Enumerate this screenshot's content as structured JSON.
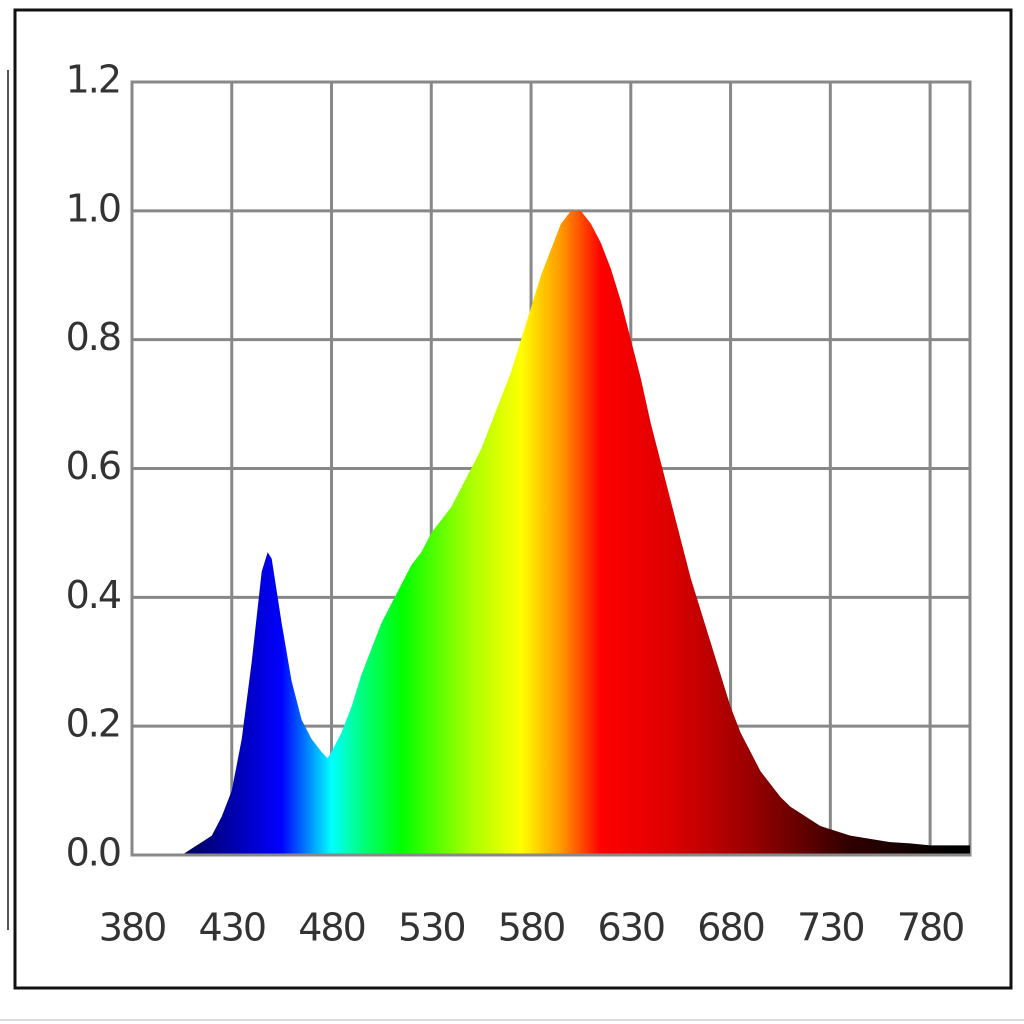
{
  "chart_data": {
    "type": "area",
    "x": [
      380,
      385,
      390,
      395,
      400,
      405,
      410,
      415,
      420,
      425,
      430,
      435,
      440,
      445,
      448,
      450,
      455,
      460,
      465,
      470,
      475,
      478,
      480,
      485,
      490,
      495,
      500,
      505,
      510,
      515,
      520,
      525,
      530,
      535,
      540,
      545,
      550,
      555,
      560,
      565,
      570,
      575,
      580,
      585,
      590,
      595,
      600,
      605,
      610,
      615,
      620,
      625,
      630,
      635,
      640,
      645,
      650,
      655,
      660,
      665,
      670,
      675,
      680,
      685,
      690,
      695,
      700,
      705,
      710,
      715,
      720,
      725,
      730,
      740,
      750,
      760,
      770,
      780,
      790,
      800
    ],
    "values": [
      0,
      0,
      0,
      0,
      0,
      0,
      0.01,
      0.02,
      0.03,
      0.06,
      0.1,
      0.18,
      0.3,
      0.44,
      0.47,
      0.46,
      0.36,
      0.27,
      0.21,
      0.18,
      0.16,
      0.15,
      0.16,
      0.19,
      0.23,
      0.28,
      0.32,
      0.36,
      0.39,
      0.42,
      0.45,
      0.47,
      0.5,
      0.52,
      0.54,
      0.57,
      0.6,
      0.63,
      0.67,
      0.71,
      0.75,
      0.8,
      0.85,
      0.9,
      0.94,
      0.98,
      1.0,
      1.0,
      0.98,
      0.95,
      0.91,
      0.86,
      0.8,
      0.74,
      0.67,
      0.61,
      0.55,
      0.49,
      0.43,
      0.38,
      0.33,
      0.28,
      0.23,
      0.19,
      0.16,
      0.13,
      0.11,
      0.09,
      0.075,
      0.065,
      0.055,
      0.045,
      0.04,
      0.03,
      0.025,
      0.02,
      0.018,
      0.015,
      0.015,
      0.015
    ],
    "xlim": [
      380,
      800
    ],
    "xticks": [
      380,
      430,
      480,
      530,
      580,
      630,
      680,
      730,
      780
    ],
    "ylim": [
      0,
      1.2
    ],
    "yticks": [
      {
        "value": 0,
        "label": "0.0"
      },
      0.2,
      0.4,
      0.6,
      0.8,
      {
        "value": 1,
        "label": "1.0"
      },
      1.2
    ],
    "grid": true,
    "color": "spectrum"
  }
}
